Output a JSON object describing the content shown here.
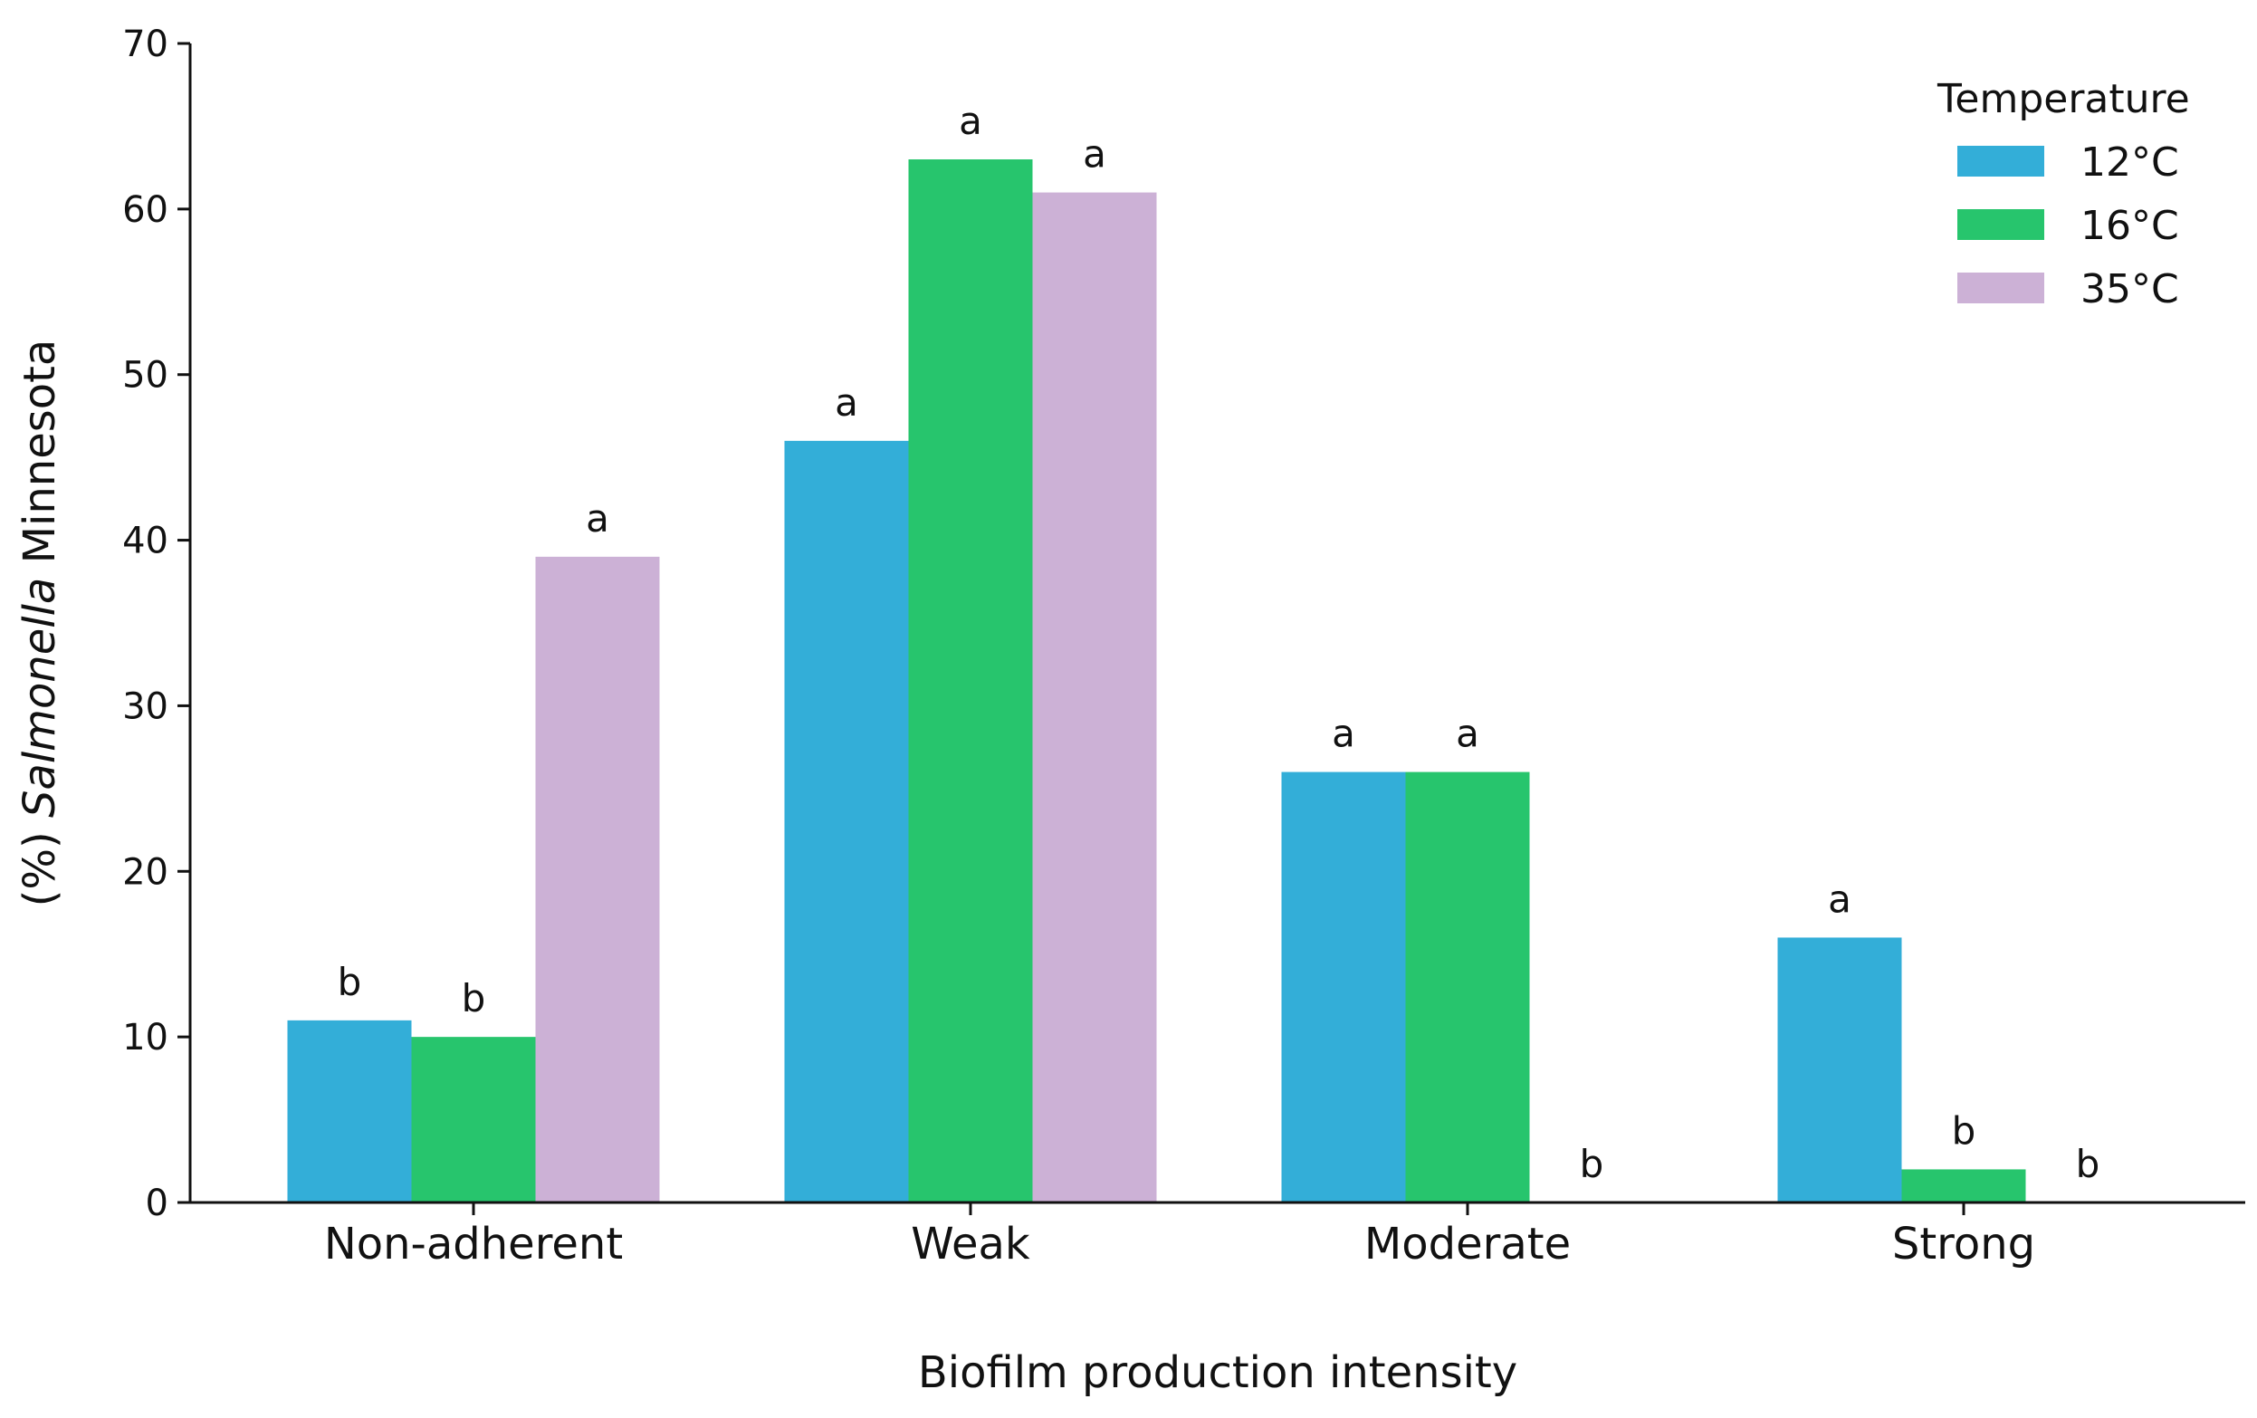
{
  "chart_data": {
    "type": "bar",
    "categories": [
      "Non-adherent",
      "Weak",
      "Moderate",
      "Strong"
    ],
    "series": [
      {
        "name": "12°C",
        "color": "#33aed8",
        "values": [
          11,
          46,
          26,
          16
        ],
        "labels": [
          "b",
          "a",
          "a",
          "a"
        ]
      },
      {
        "name": "16°C",
        "color": "#27c56d",
        "values": [
          10,
          63,
          26,
          2
        ],
        "labels": [
          "b",
          "a",
          "a",
          "b"
        ]
      },
      {
        "name": "35°C",
        "color": "#ccb1d6",
        "values": [
          39,
          61,
          0,
          0
        ],
        "labels": [
          "a",
          "a",
          "b",
          "b"
        ]
      }
    ],
    "xlabel": "Biofilm production intensity",
    "ylabel_prefix": "(%) ",
    "ylabel_italic": "Salmonella",
    "ylabel_suffix": " Minnesota",
    "ylim": [
      0,
      70
    ],
    "yticks": [
      0,
      10,
      20,
      30,
      40,
      50,
      60,
      70
    ],
    "legend_title": "Temperature",
    "legend_position": "top-right",
    "grid": false
  }
}
